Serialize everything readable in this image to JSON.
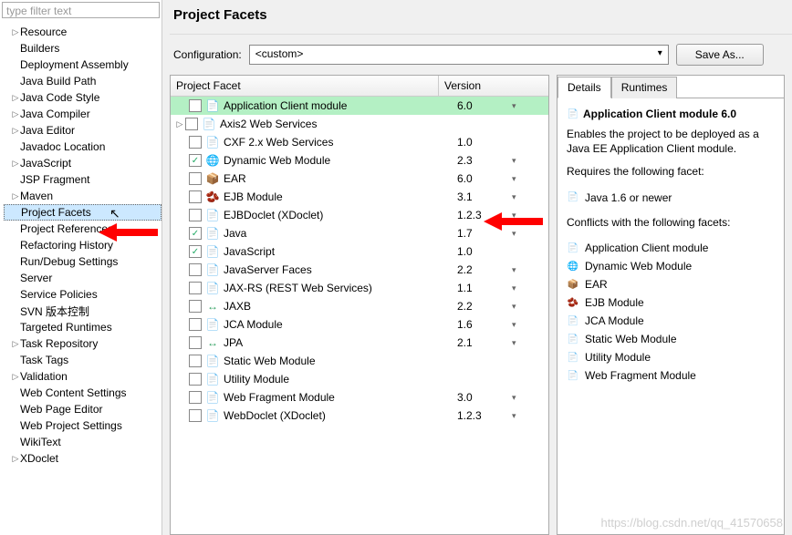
{
  "filter_placeholder": "type filter text",
  "sidebar": {
    "items": [
      {
        "label": "Resource",
        "expander": "▷"
      },
      {
        "label": "Builders",
        "expander": ""
      },
      {
        "label": "Deployment Assembly",
        "expander": ""
      },
      {
        "label": "Java Build Path",
        "expander": ""
      },
      {
        "label": "Java Code Style",
        "expander": "▷"
      },
      {
        "label": "Java Compiler",
        "expander": "▷"
      },
      {
        "label": "Java Editor",
        "expander": "▷"
      },
      {
        "label": "Javadoc Location",
        "expander": ""
      },
      {
        "label": "JavaScript",
        "expander": "▷"
      },
      {
        "label": "JSP Fragment",
        "expander": ""
      },
      {
        "label": "Maven",
        "expander": "▷"
      },
      {
        "label": "Project Facets",
        "expander": "",
        "selected": true
      },
      {
        "label": "Project References",
        "expander": ""
      },
      {
        "label": "Refactoring History",
        "expander": ""
      },
      {
        "label": "Run/Debug Settings",
        "expander": ""
      },
      {
        "label": "Server",
        "expander": ""
      },
      {
        "label": "Service Policies",
        "expander": ""
      },
      {
        "label": "SVN 版本控制",
        "expander": ""
      },
      {
        "label": "Targeted Runtimes",
        "expander": ""
      },
      {
        "label": "Task Repository",
        "expander": "▷"
      },
      {
        "label": "Task Tags",
        "expander": ""
      },
      {
        "label": "Validation",
        "expander": "▷"
      },
      {
        "label": "Web Content Settings",
        "expander": ""
      },
      {
        "label": "Web Page Editor",
        "expander": ""
      },
      {
        "label": "Web Project Settings",
        "expander": ""
      },
      {
        "label": "WikiText",
        "expander": ""
      },
      {
        "label": "XDoclet",
        "expander": "▷"
      }
    ]
  },
  "main": {
    "title": "Project Facets",
    "config_label": "Configuration:",
    "config_value": "<custom>",
    "save_as_label": "Save As...",
    "col_facet": "Project Facet",
    "col_version": "Version",
    "facets": [
      {
        "label": "Application Client module",
        "ver": "6.0",
        "drop": true,
        "checked": false,
        "highlight": true,
        "icon": "📄",
        "iconColor": "#6aa2e0"
      },
      {
        "label": "Axis2 Web Services",
        "ver": "",
        "drop": false,
        "checked": false,
        "exp": "▷",
        "icon": "📄",
        "iconColor": "#6aa2e0"
      },
      {
        "label": "CXF 2.x Web Services",
        "ver": "1.0",
        "drop": false,
        "checked": false,
        "icon": "📄",
        "iconColor": "#6aa2e0"
      },
      {
        "label": "Dynamic Web Module",
        "ver": "2.3",
        "drop": true,
        "checked": true,
        "icon": "🌐",
        "iconColor": "#3a7bd5"
      },
      {
        "label": "EAR",
        "ver": "6.0",
        "drop": true,
        "checked": false,
        "icon": "📦",
        "iconColor": "#e0a050"
      },
      {
        "label": "EJB Module",
        "ver": "3.1",
        "drop": true,
        "checked": false,
        "icon": "🫘",
        "iconColor": "#d09040"
      },
      {
        "label": "EJBDoclet (XDoclet)",
        "ver": "1.2.3",
        "drop": true,
        "checked": false,
        "icon": "📄",
        "iconColor": "#6aa2e0"
      },
      {
        "label": "Java",
        "ver": "1.7",
        "drop": true,
        "checked": true,
        "icon": "📄",
        "iconColor": "#6aa2e0"
      },
      {
        "label": "JavaScript",
        "ver": "1.0",
        "drop": false,
        "checked": true,
        "icon": "📄",
        "iconColor": "#6aa2e0"
      },
      {
        "label": "JavaServer Faces",
        "ver": "2.2",
        "drop": true,
        "checked": false,
        "icon": "📄",
        "iconColor": "#6aa2e0"
      },
      {
        "label": "JAX-RS (REST Web Services)",
        "ver": "1.1",
        "drop": true,
        "checked": false,
        "icon": "📄",
        "iconColor": "#6aa2e0"
      },
      {
        "label": "JAXB",
        "ver": "2.2",
        "drop": true,
        "checked": false,
        "icon": "↔",
        "iconColor": "#30a060"
      },
      {
        "label": "JCA Module",
        "ver": "1.6",
        "drop": true,
        "checked": false,
        "icon": "📄",
        "iconColor": "#6aa2e0"
      },
      {
        "label": "JPA",
        "ver": "2.1",
        "drop": true,
        "checked": false,
        "icon": "↔",
        "iconColor": "#30a060"
      },
      {
        "label": "Static Web Module",
        "ver": "",
        "drop": false,
        "checked": false,
        "icon": "📄",
        "iconColor": "#6aa2e0"
      },
      {
        "label": "Utility Module",
        "ver": "",
        "drop": false,
        "checked": false,
        "icon": "📄",
        "iconColor": "#6aa2e0"
      },
      {
        "label": "Web Fragment Module",
        "ver": "3.0",
        "drop": true,
        "checked": false,
        "icon": "📄",
        "iconColor": "#6aa2e0"
      },
      {
        "label": "WebDoclet (XDoclet)",
        "ver": "1.2.3",
        "drop": true,
        "checked": false,
        "icon": "📄",
        "iconColor": "#6aa2e0"
      }
    ]
  },
  "details": {
    "tabs": [
      {
        "label": "Details",
        "active": true
      },
      {
        "label": "Runtimes",
        "active": false
      }
    ],
    "title": "Application Client module 6.0",
    "desc": "Enables the project to be deployed as a Java EE Application Client module.",
    "requires_label": "Requires the following facet:",
    "requires": [
      {
        "label": "Java 1.6 or newer",
        "icon": "📄"
      }
    ],
    "conflicts_label": "Conflicts with the following facets:",
    "conflicts": [
      {
        "label": "Application Client module",
        "icon": "📄"
      },
      {
        "label": "Dynamic Web Module",
        "icon": "🌐"
      },
      {
        "label": "EAR",
        "icon": "📦"
      },
      {
        "label": "EJB Module",
        "icon": "🫘"
      },
      {
        "label": "JCA Module",
        "icon": "📄"
      },
      {
        "label": "Static Web Module",
        "icon": "📄"
      },
      {
        "label": "Utility Module",
        "icon": "📄"
      },
      {
        "label": "Web Fragment Module",
        "icon": "📄"
      }
    ]
  },
  "watermark": "https://blog.csdn.net/qq_41570658"
}
